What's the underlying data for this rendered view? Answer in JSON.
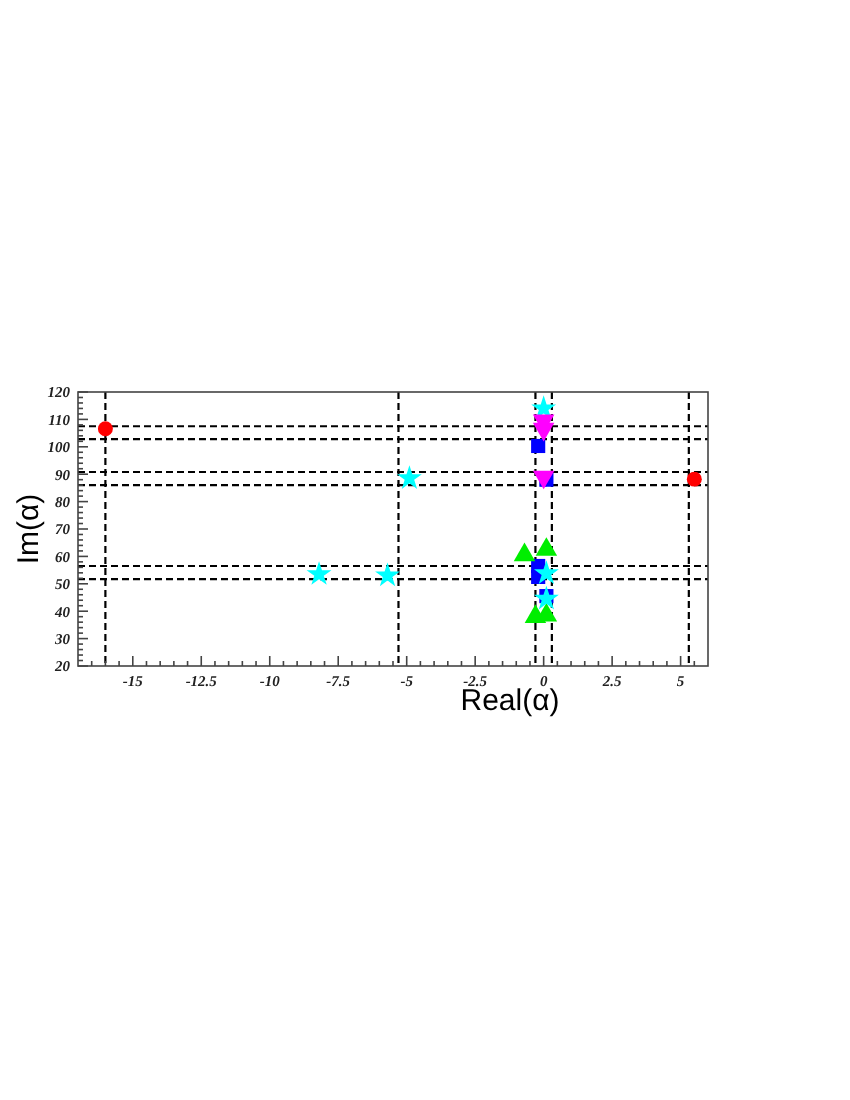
{
  "chart_data": {
    "type": "scatter",
    "xlabel": "Real(α)",
    "ylabel": "Im(α)",
    "xlim": [
      -17,
      6
    ],
    "ylim": [
      20,
      120
    ],
    "xticks": [
      {
        "value": -16.5,
        "label": null
      },
      {
        "value": -16,
        "label": null
      },
      {
        "value": -15.5,
        "label": null
      },
      -15,
      {
        "value": -14.5,
        "label": null
      },
      {
        "value": -14,
        "label": null
      },
      {
        "value": -13.5,
        "label": null
      },
      {
        "value": -13,
        "label": null
      },
      -12.5,
      {
        "value": -12,
        "label": null
      },
      {
        "value": -11.5,
        "label": null
      },
      {
        "value": -11,
        "label": null
      },
      {
        "value": -10.5,
        "label": null
      },
      -10,
      {
        "value": -9.5,
        "label": null
      },
      {
        "value": -9,
        "label": null
      },
      {
        "value": -8.5,
        "label": null
      },
      {
        "value": -8,
        "label": null
      },
      -7.5,
      {
        "value": -7,
        "label": null
      },
      {
        "value": -6.5,
        "label": null
      },
      {
        "value": -6,
        "label": null
      },
      {
        "value": -5.5,
        "label": null
      },
      -5,
      {
        "value": -4.5,
        "label": null
      },
      {
        "value": -4,
        "label": null
      },
      {
        "value": -3.5,
        "label": null
      },
      {
        "value": -3,
        "label": null
      },
      -2.5,
      {
        "value": -2,
        "label": null
      },
      {
        "value": -1.5,
        "label": null
      },
      {
        "value": -1,
        "label": null
      },
      {
        "value": -0.5,
        "label": null
      },
      0,
      {
        "value": 0.5,
        "label": null
      },
      {
        "value": 1,
        "label": null
      },
      {
        "value": 1.5,
        "label": null
      },
      {
        "value": 2,
        "label": null
      },
      2.5,
      {
        "value": 3,
        "label": null
      },
      {
        "value": 3.5,
        "label": null
      },
      {
        "value": 4,
        "label": null
      },
      {
        "value": 4.5,
        "label": null
      },
      5,
      {
        "value": 5.5,
        "label": null
      }
    ],
    "yticks": [
      20,
      {
        "value": 22,
        "label": null
      },
      {
        "value": 24,
        "label": null
      },
      {
        "value": 26,
        "label": null
      },
      {
        "value": 28,
        "label": null
      },
      30,
      {
        "value": 32,
        "label": null
      },
      {
        "value": 34,
        "label": null
      },
      {
        "value": 36,
        "label": null
      },
      {
        "value": 38,
        "label": null
      },
      40,
      {
        "value": 42,
        "label": null
      },
      {
        "value": 44,
        "label": null
      },
      {
        "value": 46,
        "label": null
      },
      {
        "value": 48,
        "label": null
      },
      50,
      {
        "value": 52,
        "label": null
      },
      {
        "value": 54,
        "label": null
      },
      {
        "value": 56,
        "label": null
      },
      {
        "value": 58,
        "label": null
      },
      60,
      {
        "value": 62,
        "label": null
      },
      {
        "value": 64,
        "label": null
      },
      {
        "value": 66,
        "label": null
      },
      {
        "value": 68,
        "label": null
      },
      70,
      {
        "value": 72,
        "label": null
      },
      {
        "value": 74,
        "label": null
      },
      {
        "value": 76,
        "label": null
      },
      {
        "value": 78,
        "label": null
      },
      80,
      {
        "value": 82,
        "label": null
      },
      {
        "value": 84,
        "label": null
      },
      {
        "value": 86,
        "label": null
      },
      {
        "value": 88,
        "label": null
      },
      90,
      {
        "value": 92,
        "label": null
      },
      {
        "value": 94,
        "label": null
      },
      {
        "value": 96,
        "label": null
      },
      {
        "value": 98,
        "label": null
      },
      100,
      {
        "value": 102,
        "label": null
      },
      {
        "value": 104,
        "label": null
      },
      {
        "value": 106,
        "label": null
      },
      {
        "value": 108,
        "label": null
      },
      110,
      {
        "value": 112,
        "label": null
      },
      {
        "value": 114,
        "label": null
      },
      {
        "value": 116,
        "label": null
      },
      {
        "value": 118,
        "label": null
      },
      120
    ],
    "series": [
      {
        "color": "#0000ff",
        "marker": "square",
        "x": [
          -0.2,
          0.1,
          -0.2,
          -0.2,
          0.1
        ],
        "values": [
          100.3,
          88,
          56.5,
          52.5,
          45.5
        ]
      },
      {
        "color": "#00ee00",
        "marker": "triangle",
        "x": [
          -0.7,
          0.1,
          -0.3,
          0.1
        ],
        "values": [
          60.5,
          62.5,
          38,
          38.5
        ]
      },
      {
        "color": "#00ffff",
        "marker": "star",
        "x": [
          -8.2,
          -5.7,
          -4.9,
          0,
          0.1,
          0.1
        ],
        "values": [
          53.5,
          53,
          88.5,
          114,
          53.8,
          44.5
        ]
      },
      {
        "color": "#ff00ff",
        "marker": "triangle-down",
        "x": [
          0,
          0,
          0
        ],
        "values": [
          109.5,
          106.5,
          89
        ]
      },
      {
        "color": "#ff0000",
        "marker": "circle",
        "x": [
          -16,
          5.5
        ],
        "values": [
          106.6,
          88.2
        ]
      }
    ],
    "ref_lines": [
      {
        "axis": "x",
        "value": -16,
        "line_style": "dashed"
      },
      {
        "axis": "x",
        "value": -5.3,
        "line_style": "dashed"
      },
      {
        "axis": "x",
        "value": -0.3,
        "line_style": "dashed"
      },
      {
        "axis": "x",
        "value": 0.3,
        "line_style": "dashed"
      },
      {
        "axis": "x",
        "value": 5.3,
        "line_style": "dashed"
      },
      {
        "axis": "y",
        "value": 107.5,
        "line_style": "dashed"
      },
      {
        "axis": "y",
        "value": 102.8,
        "line_style": "dashed"
      },
      {
        "axis": "y",
        "value": 90.8,
        "line_style": "dashed"
      },
      {
        "axis": "y",
        "value": 86,
        "line_style": "dashed"
      },
      {
        "axis": "y",
        "value": 56.5,
        "line_style": "dashed"
      },
      {
        "axis": "y",
        "value": 51.7,
        "line_style": "dashed"
      }
    ]
  }
}
